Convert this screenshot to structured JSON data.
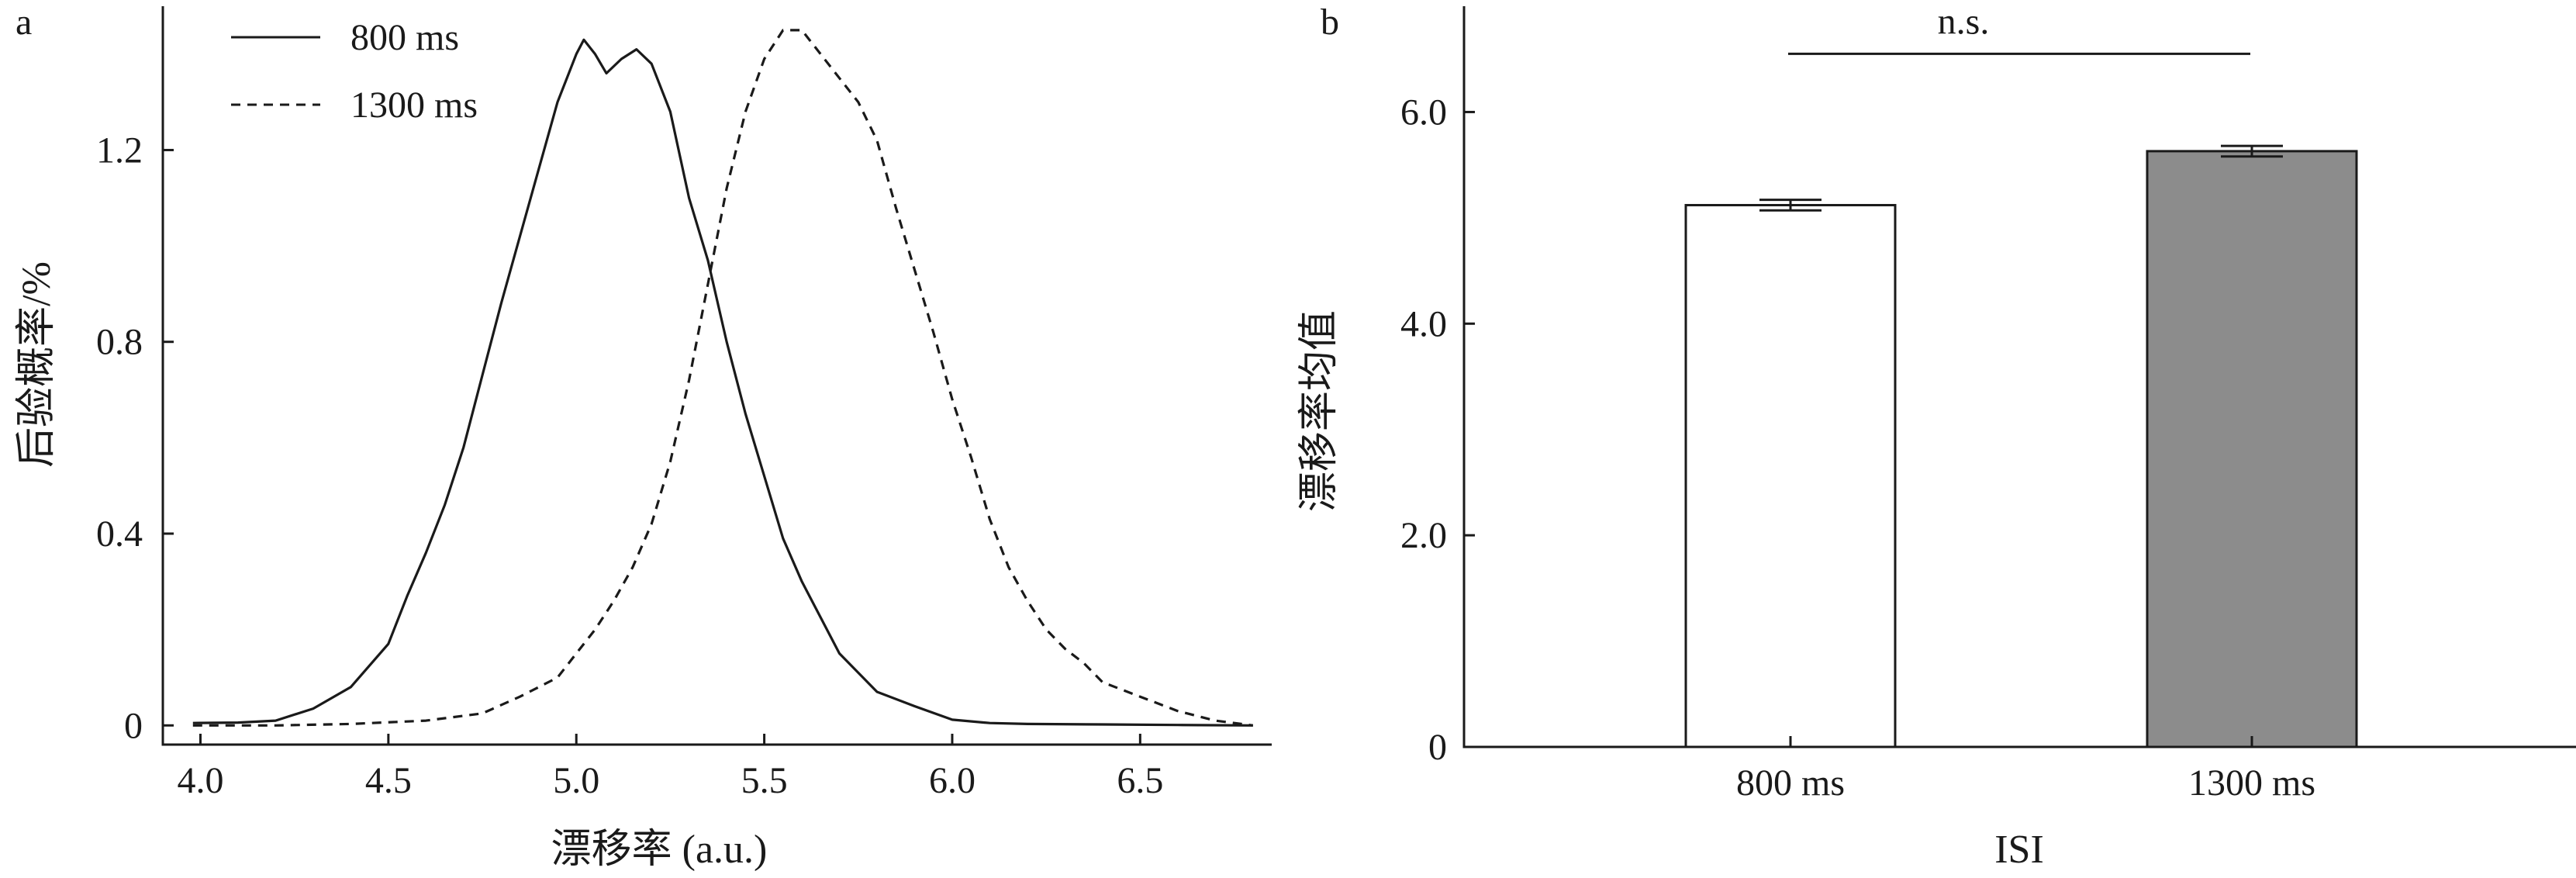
{
  "chart_data": [
    {
      "panel": "a",
      "type": "line",
      "xlabel": "漂移率 (a.u.)",
      "ylabel": "后验概率/%",
      "xlim": [
        3.9,
        6.85
      ],
      "ylim": [
        -0.04,
        1.5
      ],
      "x_ticks": [
        4.0,
        4.5,
        5.0,
        5.5,
        6.0,
        6.5
      ],
      "x_tick_labels": [
        "4.0",
        "4.5",
        "5.0",
        "5.5",
        "6.0",
        "6.5"
      ],
      "y_ticks": [
        0,
        0.4,
        0.8,
        1.2
      ],
      "y_tick_labels": [
        "0",
        "0.4",
        "0.8",
        "1.2"
      ],
      "legend_position": "top-left",
      "series": [
        {
          "name": "800 ms",
          "style": "solid",
          "x": [
            3.98,
            4.1,
            4.2,
            4.3,
            4.4,
            4.5,
            4.55,
            4.6,
            4.65,
            4.7,
            4.75,
            4.8,
            4.85,
            4.9,
            4.95,
            5.0,
            5.02,
            5.05,
            5.08,
            5.12,
            5.16,
            5.2,
            5.25,
            5.3,
            5.35,
            5.4,
            5.45,
            5.5,
            5.55,
            5.6,
            5.7,
            5.8,
            5.9,
            6.0,
            6.1,
            6.2,
            6.4,
            6.6,
            6.8
          ],
          "y": [
            0.005,
            0.006,
            0.01,
            0.035,
            0.08,
            0.17,
            0.27,
            0.36,
            0.46,
            0.58,
            0.73,
            0.88,
            1.02,
            1.16,
            1.3,
            1.4,
            1.43,
            1.4,
            1.36,
            1.39,
            1.41,
            1.38,
            1.28,
            1.1,
            0.97,
            0.8,
            0.65,
            0.52,
            0.39,
            0.3,
            0.15,
            0.07,
            0.04,
            0.012,
            0.005,
            0.003,
            0.002,
            0.001,
            0.0
          ]
        },
        {
          "name": "1300 ms",
          "style": "dashed",
          "x": [
            3.98,
            4.2,
            4.4,
            4.6,
            4.75,
            4.85,
            4.95,
            5.0,
            5.05,
            5.1,
            5.15,
            5.2,
            5.25,
            5.3,
            5.35,
            5.4,
            5.45,
            5.5,
            5.55,
            5.6,
            5.65,
            5.7,
            5.75,
            5.8,
            5.85,
            5.9,
            5.95,
            6.0,
            6.05,
            6.1,
            6.15,
            6.2,
            6.25,
            6.3,
            6.35,
            6.4,
            6.5,
            6.6,
            6.7,
            6.8
          ],
          "y": [
            0.0,
            0.0,
            0.003,
            0.01,
            0.025,
            0.06,
            0.1,
            0.15,
            0.2,
            0.26,
            0.33,
            0.42,
            0.55,
            0.72,
            0.92,
            1.12,
            1.28,
            1.39,
            1.45,
            1.45,
            1.4,
            1.35,
            1.3,
            1.22,
            1.08,
            0.95,
            0.82,
            0.68,
            0.56,
            0.43,
            0.33,
            0.26,
            0.2,
            0.16,
            0.13,
            0.09,
            0.06,
            0.03,
            0.01,
            0.0
          ]
        }
      ]
    },
    {
      "panel": "b",
      "type": "bar",
      "xlabel": "ISI",
      "ylabel": "漂移率均值",
      "ylim": [
        0,
        7.0
      ],
      "y_ticks": [
        0,
        2.0,
        4.0,
        6.0
      ],
      "y_tick_labels": [
        "0",
        "2.0",
        "4.0",
        "6.0"
      ],
      "categories": [
        "800 ms",
        "1300 ms"
      ],
      "values": [
        5.12,
        5.63
      ],
      "errors": [
        0.05,
        0.05
      ],
      "bar_colors": [
        "#ffffff",
        "#8c8c8c"
      ],
      "significance": {
        "label": "n.s.",
        "between": [
          "800 ms",
          "1300 ms"
        ],
        "y": 6.55
      }
    }
  ]
}
